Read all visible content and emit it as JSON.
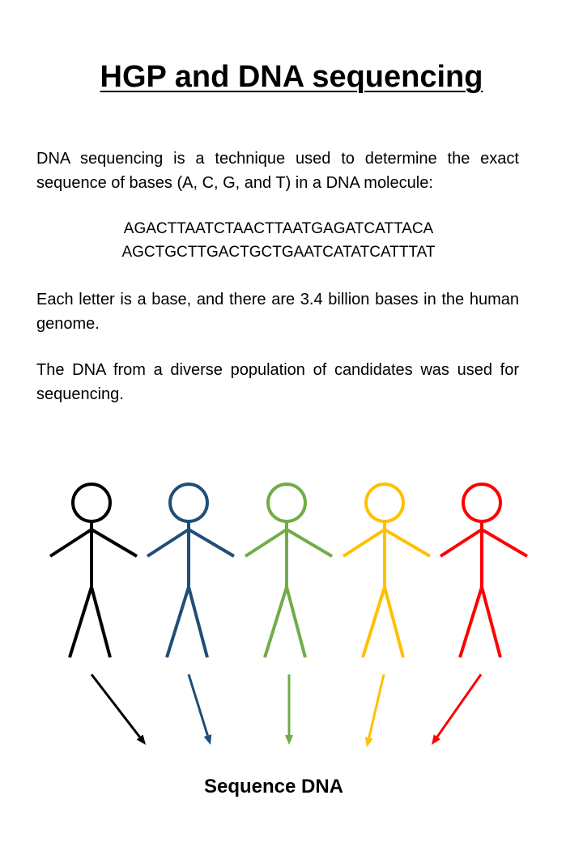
{
  "title": "HGP and DNA sequencing",
  "intro": "DNA sequencing is a technique used to determine the exact sequence of bases (A, C, G, and T) in a DNA molecule:",
  "sequence": {
    "line1": "AGACTTAATCTAACTTAATGAGATCATTACA",
    "line2": "AGCTGCTTGACTGCTGAATCATATCATTTAT"
  },
  "genome_fact": "Each letter is a base, and there are 3.4 billion bases in the human genome.",
  "population_fact": "The DNA from a diverse population of candidates  was used for sequencing.",
  "figures": [
    {
      "color": "#000000"
    },
    {
      "color": "#1f4e79"
    },
    {
      "color": "#70ad47"
    },
    {
      "color": "#ffc000"
    },
    {
      "color": "#ff0000"
    }
  ],
  "caption": "Sequence DNA"
}
